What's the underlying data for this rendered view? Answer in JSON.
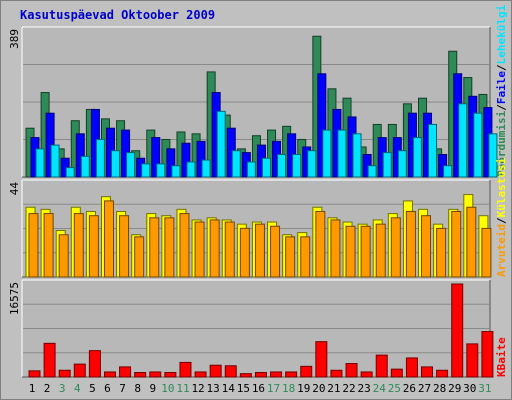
{
  "title": "Kasutuspäevad Oktoober 2009",
  "chart_data": [
    {
      "type": "bar",
      "panel": "top",
      "ymax_label": "389",
      "ylim": [
        0,
        389
      ],
      "legend": [
        {
          "text": "Pöördumisi",
          "color": "#2e8b57"
        },
        {
          "text": "Faile",
          "color": "#0000ff"
        },
        {
          "text": "Lehekülgi",
          "color": "#00e5ff"
        }
      ],
      "categories": [
        "1",
        "2",
        "3",
        "4",
        "5",
        "6",
        "7",
        "8",
        "9",
        "10",
        "11",
        "12",
        "13",
        "14",
        "15",
        "16",
        "17",
        "18",
        "19",
        "20",
        "21",
        "22",
        "23",
        "24",
        "25",
        "26",
        "27",
        "28",
        "29",
        "30",
        "31"
      ],
      "series": [
        {
          "name": "Pöördumisi",
          "color": "#2e8b57",
          "values": [
            130,
            225,
            75,
            150,
            180,
            155,
            150,
            70,
            125,
            100,
            120,
            115,
            280,
            165,
            75,
            110,
            125,
            135,
            100,
            375,
            235,
            210,
            80,
            140,
            140,
            195,
            210,
            75,
            335,
            265,
            220
          ]
        },
        {
          "name": "Faile",
          "color": "#0000ff",
          "values": [
            105,
            170,
            50,
            115,
            180,
            130,
            125,
            50,
            105,
            75,
            90,
            95,
            225,
            130,
            65,
            85,
            95,
            115,
            80,
            275,
            180,
            160,
            60,
            105,
            105,
            170,
            170,
            60,
            275,
            215,
            185
          ]
        },
        {
          "name": "Lehekülgi",
          "color": "#00e5ff",
          "values": [
            75,
            85,
            25,
            55,
            100,
            70,
            65,
            35,
            35,
            30,
            40,
            45,
            175,
            70,
            40,
            50,
            60,
            60,
            70,
            125,
            125,
            115,
            30,
            65,
            70,
            105,
            140,
            30,
            195,
            170,
            115
          ]
        }
      ]
    },
    {
      "type": "bar",
      "panel": "middle",
      "ymax_label": "44",
      "ylim": [
        0,
        44
      ],
      "legend": [
        {
          "text": "Arvuteid",
          "color": "#ff9900"
        },
        {
          "text": "Külastusi",
          "color": "#ffff00"
        }
      ],
      "categories": [
        "1",
        "2",
        "3",
        "4",
        "5",
        "6",
        "7",
        "8",
        "9",
        "10",
        "11",
        "12",
        "13",
        "14",
        "15",
        "16",
        "17",
        "18",
        "19",
        "20",
        "21",
        "22",
        "23",
        "24",
        "25",
        "26",
        "27",
        "28",
        "29",
        "30",
        "31"
      ],
      "series": [
        {
          "name": "Külastusi",
          "color": "#ffff00",
          "values": [
            33,
            32,
            22,
            33,
            31,
            38,
            31,
            20,
            30,
            29,
            32,
            27,
            28,
            27,
            25,
            26,
            26,
            20,
            21,
            33,
            28,
            26,
            25,
            27,
            30,
            36,
            32,
            25,
            32,
            39,
            29
          ]
        },
        {
          "name": "Arvuteid",
          "color": "#ff9900",
          "values": [
            30,
            30,
            20,
            30,
            29,
            36,
            29,
            19,
            28,
            28,
            30,
            26,
            27,
            26,
            23,
            25,
            24,
            19,
            19,
            31,
            27,
            24,
            24,
            25,
            28,
            31,
            29,
            23,
            31,
            33,
            23
          ]
        }
      ]
    },
    {
      "type": "bar",
      "panel": "bottom",
      "ymax_label": "16575",
      "ylim": [
        0,
        16575
      ],
      "legend": [
        {
          "text": "KBaite",
          "color": "#ff0000"
        }
      ],
      "categories": [
        "1",
        "2",
        "3",
        "4",
        "5",
        "6",
        "7",
        "8",
        "9",
        "10",
        "11",
        "12",
        "13",
        "14",
        "15",
        "16",
        "17",
        "18",
        "19",
        "20",
        "21",
        "22",
        "23",
        "24",
        "25",
        "26",
        "27",
        "28",
        "29",
        "30",
        "31"
      ],
      "series": [
        {
          "name": "KBaite",
          "color": "#ff0000",
          "values": [
            1100,
            6000,
            1200,
            2300,
            4700,
            900,
            1800,
            800,
            900,
            800,
            2600,
            900,
            2100,
            2000,
            600,
            800,
            900,
            900,
            1900,
            6300,
            1200,
            2400,
            900,
            3900,
            1400,
            3400,
            1800,
            1200,
            16575,
            5900,
            8100
          ]
        }
      ]
    }
  ],
  "x_label_colors": {
    "weekday": "#000000",
    "weekend": "#2e8b57"
  },
  "weekend_days": [
    "3",
    "4",
    "10",
    "11",
    "17",
    "18",
    "24",
    "25",
    "31"
  ]
}
